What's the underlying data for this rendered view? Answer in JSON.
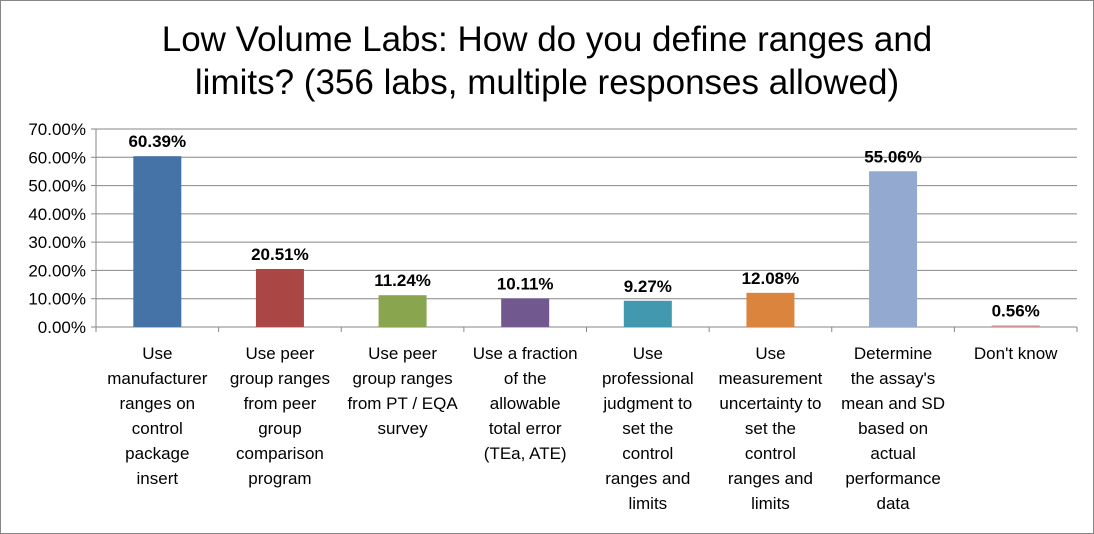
{
  "chart_data": {
    "type": "bar",
    "title": "Low Volume Labs: How do you define ranges and limits? (356 labs, multiple responses allowed)",
    "title_lines": [
      "Low Volume Labs: How do you define ranges and",
      "limits? (356 labs, multiple responses allowed)"
    ],
    "xlabel": "",
    "ylabel": "",
    "ylim": [
      0,
      70
    ],
    "yticks": [
      "0.00%",
      "10.00%",
      "20.00%",
      "30.00%",
      "40.00%",
      "50.00%",
      "60.00%",
      "70.00%"
    ],
    "grid": true,
    "legend": "none",
    "categories": [
      "Use manufacturer ranges on control package insert",
      "Use peer group ranges from peer group comparison program",
      "Use peer group ranges from PT / EQA survey",
      "Use a fraction of the allowable total error (TEa, ATE)",
      "Use professional judgment to set the control ranges and limits",
      "Use measurement uncertainty to set the control ranges and limits",
      "Determine the assay's mean and SD based on actual performance data",
      "Don't know"
    ],
    "category_lines": [
      [
        "Use",
        "manufacturer",
        "ranges on",
        "control",
        "package",
        "insert"
      ],
      [
        "Use peer",
        "group ranges",
        "from peer",
        "group",
        "comparison",
        "program"
      ],
      [
        "Use peer",
        "group ranges",
        "from PT / EQA",
        "survey"
      ],
      [
        "Use a fraction",
        "of the",
        "allowable",
        "total error",
        "(TEa, ATE)"
      ],
      [
        "Use",
        "professional",
        "judgment to",
        "set the",
        "control",
        "ranges and",
        "limits"
      ],
      [
        "Use",
        "measurement",
        "uncertainty to",
        "set the",
        "control",
        "ranges and",
        "limits"
      ],
      [
        "Determine",
        "the assay's",
        "mean and SD",
        "based on",
        "actual",
        "performance",
        "data"
      ],
      [
        "Don't know"
      ]
    ],
    "values": [
      60.39,
      20.51,
      11.24,
      10.11,
      9.27,
      12.08,
      55.06,
      0.56
    ],
    "data_labels": [
      "60.39%",
      "20.51%",
      "11.24%",
      "10.11%",
      "9.27%",
      "12.08%",
      "55.06%",
      "0.56%"
    ],
    "colors": [
      "#4572A7",
      "#AA4643",
      "#89A54E",
      "#71588F",
      "#4198AF",
      "#DB843D",
      "#93A9CF",
      "#D19392"
    ]
  }
}
